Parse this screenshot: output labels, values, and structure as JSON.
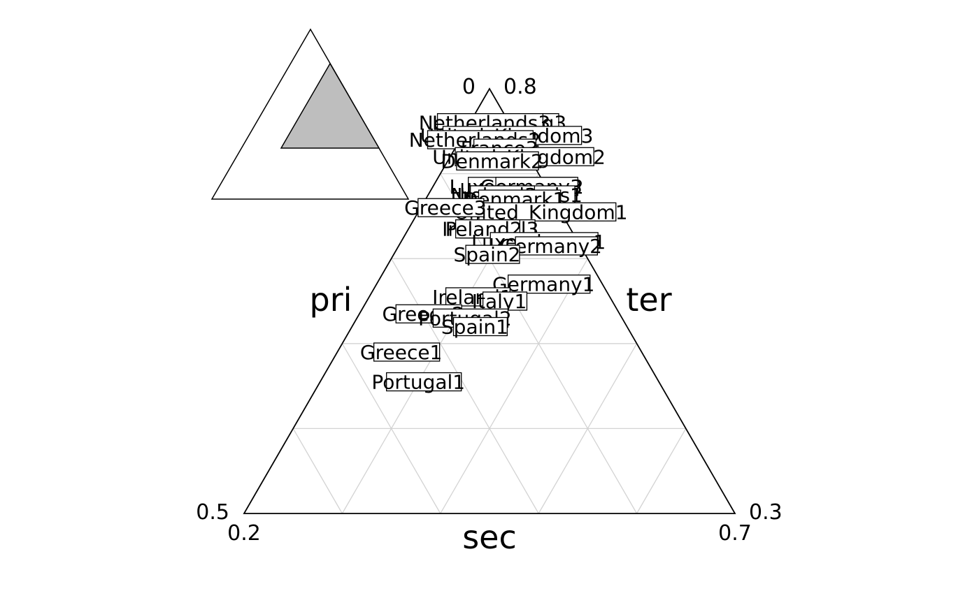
{
  "chart_data": {
    "type": "scatter",
    "subtype": "ternary",
    "title": "",
    "axes": {
      "pri": {
        "label": "pri",
        "range": [
          0,
          0.5
        ]
      },
      "sec": {
        "label": "sec",
        "range": [
          0.2,
          0.7
        ]
      },
      "ter": {
        "label": "ter",
        "range": [
          0.3,
          0.8
        ]
      }
    },
    "corner_labels": {
      "top_left": "0",
      "top_right": "0.8",
      "left_top": "0.5",
      "left_bottom": "0.2",
      "right_top": "0.3",
      "right_bottom": "0.7"
    },
    "grid": true,
    "grid_step": 0.1,
    "grid_color": "#d3d3d3",
    "inset": {
      "shows": "zoomed region of full triangle",
      "fill": "#bebebe"
    },
    "points": [
      {
        "label": "Luxembourg3",
        "pri": 0.01,
        "sec": 0.23,
        "ter": 0.76
      },
      {
        "label": "Netherlands3",
        "pri": 0.025,
        "sec": 0.215,
        "ter": 0.76
      },
      {
        "label": "United_Kingdom3",
        "pri": 0.01,
        "sec": 0.245,
        "ter": 0.745
      },
      {
        "label": "Netherlands2",
        "pri": 0.045,
        "sec": 0.215,
        "ter": 0.74
      },
      {
        "label": "France3",
        "pri": 0.025,
        "sec": 0.245,
        "ter": 0.73
      },
      {
        "label": "United_Kingdom2",
        "pri": 0.01,
        "sec": 0.27,
        "ter": 0.72
      },
      {
        "label": "Denmark2",
        "pri": 0.04,
        "sec": 0.245,
        "ter": 0.715
      },
      {
        "label": "Luxembourg2",
        "pri": 0.03,
        "sec": 0.285,
        "ter": 0.685
      },
      {
        "label": "Germany3",
        "pri": 0.015,
        "sec": 0.3,
        "ter": 0.685
      },
      {
        "label": "Netherlands1",
        "pri": 0.035,
        "sec": 0.29,
        "ter": 0.675
      },
      {
        "label": "Ireland3",
        "pri": 0.055,
        "sec": 0.27,
        "ter": 0.675
      },
      {
        "label": "Denmark1",
        "pri": 0.04,
        "sec": 0.29,
        "ter": 0.67
      },
      {
        "label": "United_Kingdom1",
        "pri": 0.02,
        "sec": 0.325,
        "ter": 0.655
      },
      {
        "label": "Greece3",
        "pri": 0.115,
        "sec": 0.225,
        "ter": 0.66
      },
      {
        "label": "Portugal3",
        "pri": 0.08,
        "sec": 0.285,
        "ter": 0.635
      },
      {
        "label": "Ireland2",
        "pri": 0.09,
        "sec": 0.275,
        "ter": 0.635
      },
      {
        "label": "Luxembourg1",
        "pri": 0.04,
        "sec": 0.34,
        "ter": 0.62
      },
      {
        "label": "Germany2",
        "pri": 0.03,
        "sec": 0.355,
        "ter": 0.615
      },
      {
        "label": "Spain2",
        "pri": 0.1,
        "sec": 0.295,
        "ter": 0.605
      },
      {
        "label": "Germany1",
        "pri": 0.06,
        "sec": 0.37,
        "ter": 0.57
      },
      {
        "label": "Ireland1",
        "pri": 0.14,
        "sec": 0.305,
        "ter": 0.555
      },
      {
        "label": "Italy1",
        "pri": 0.115,
        "sec": 0.335,
        "ter": 0.55
      },
      {
        "label": "Greece2",
        "pri": 0.2,
        "sec": 0.265,
        "ter": 0.535
      },
      {
        "label": "Portugal2",
        "pri": 0.16,
        "sec": 0.31,
        "ter": 0.53
      },
      {
        "label": "Spain1",
        "pri": 0.155,
        "sec": 0.325,
        "ter": 0.52
      },
      {
        "label": "Greece1",
        "pri": 0.245,
        "sec": 0.265,
        "ter": 0.49
      },
      {
        "label": "Portugal1",
        "pri": 0.245,
        "sec": 0.3,
        "ter": 0.455
      }
    ]
  }
}
